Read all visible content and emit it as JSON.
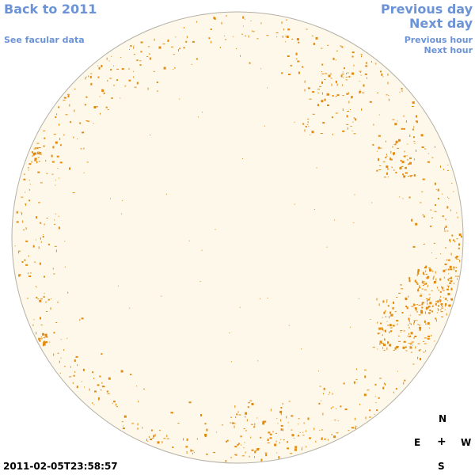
{
  "nav": {
    "back_label": "Back to 2011",
    "facular_label": "See facular data",
    "prev_day_label": "Previous day",
    "next_day_label": "Next day",
    "prev_hour_label": "Previous hour",
    "next_hour_label": "Next hour"
  },
  "compass": {
    "north": "N",
    "east": "E",
    "center": "+",
    "west": "W",
    "south": "S"
  },
  "timestamp": "2011-02-05T23:58:57",
  "colors": {
    "link": "#6b93d6",
    "disk_fill": "#fdf8ea",
    "disk_stroke": "#b5b0a5",
    "facula": "#e38a0c"
  }
}
